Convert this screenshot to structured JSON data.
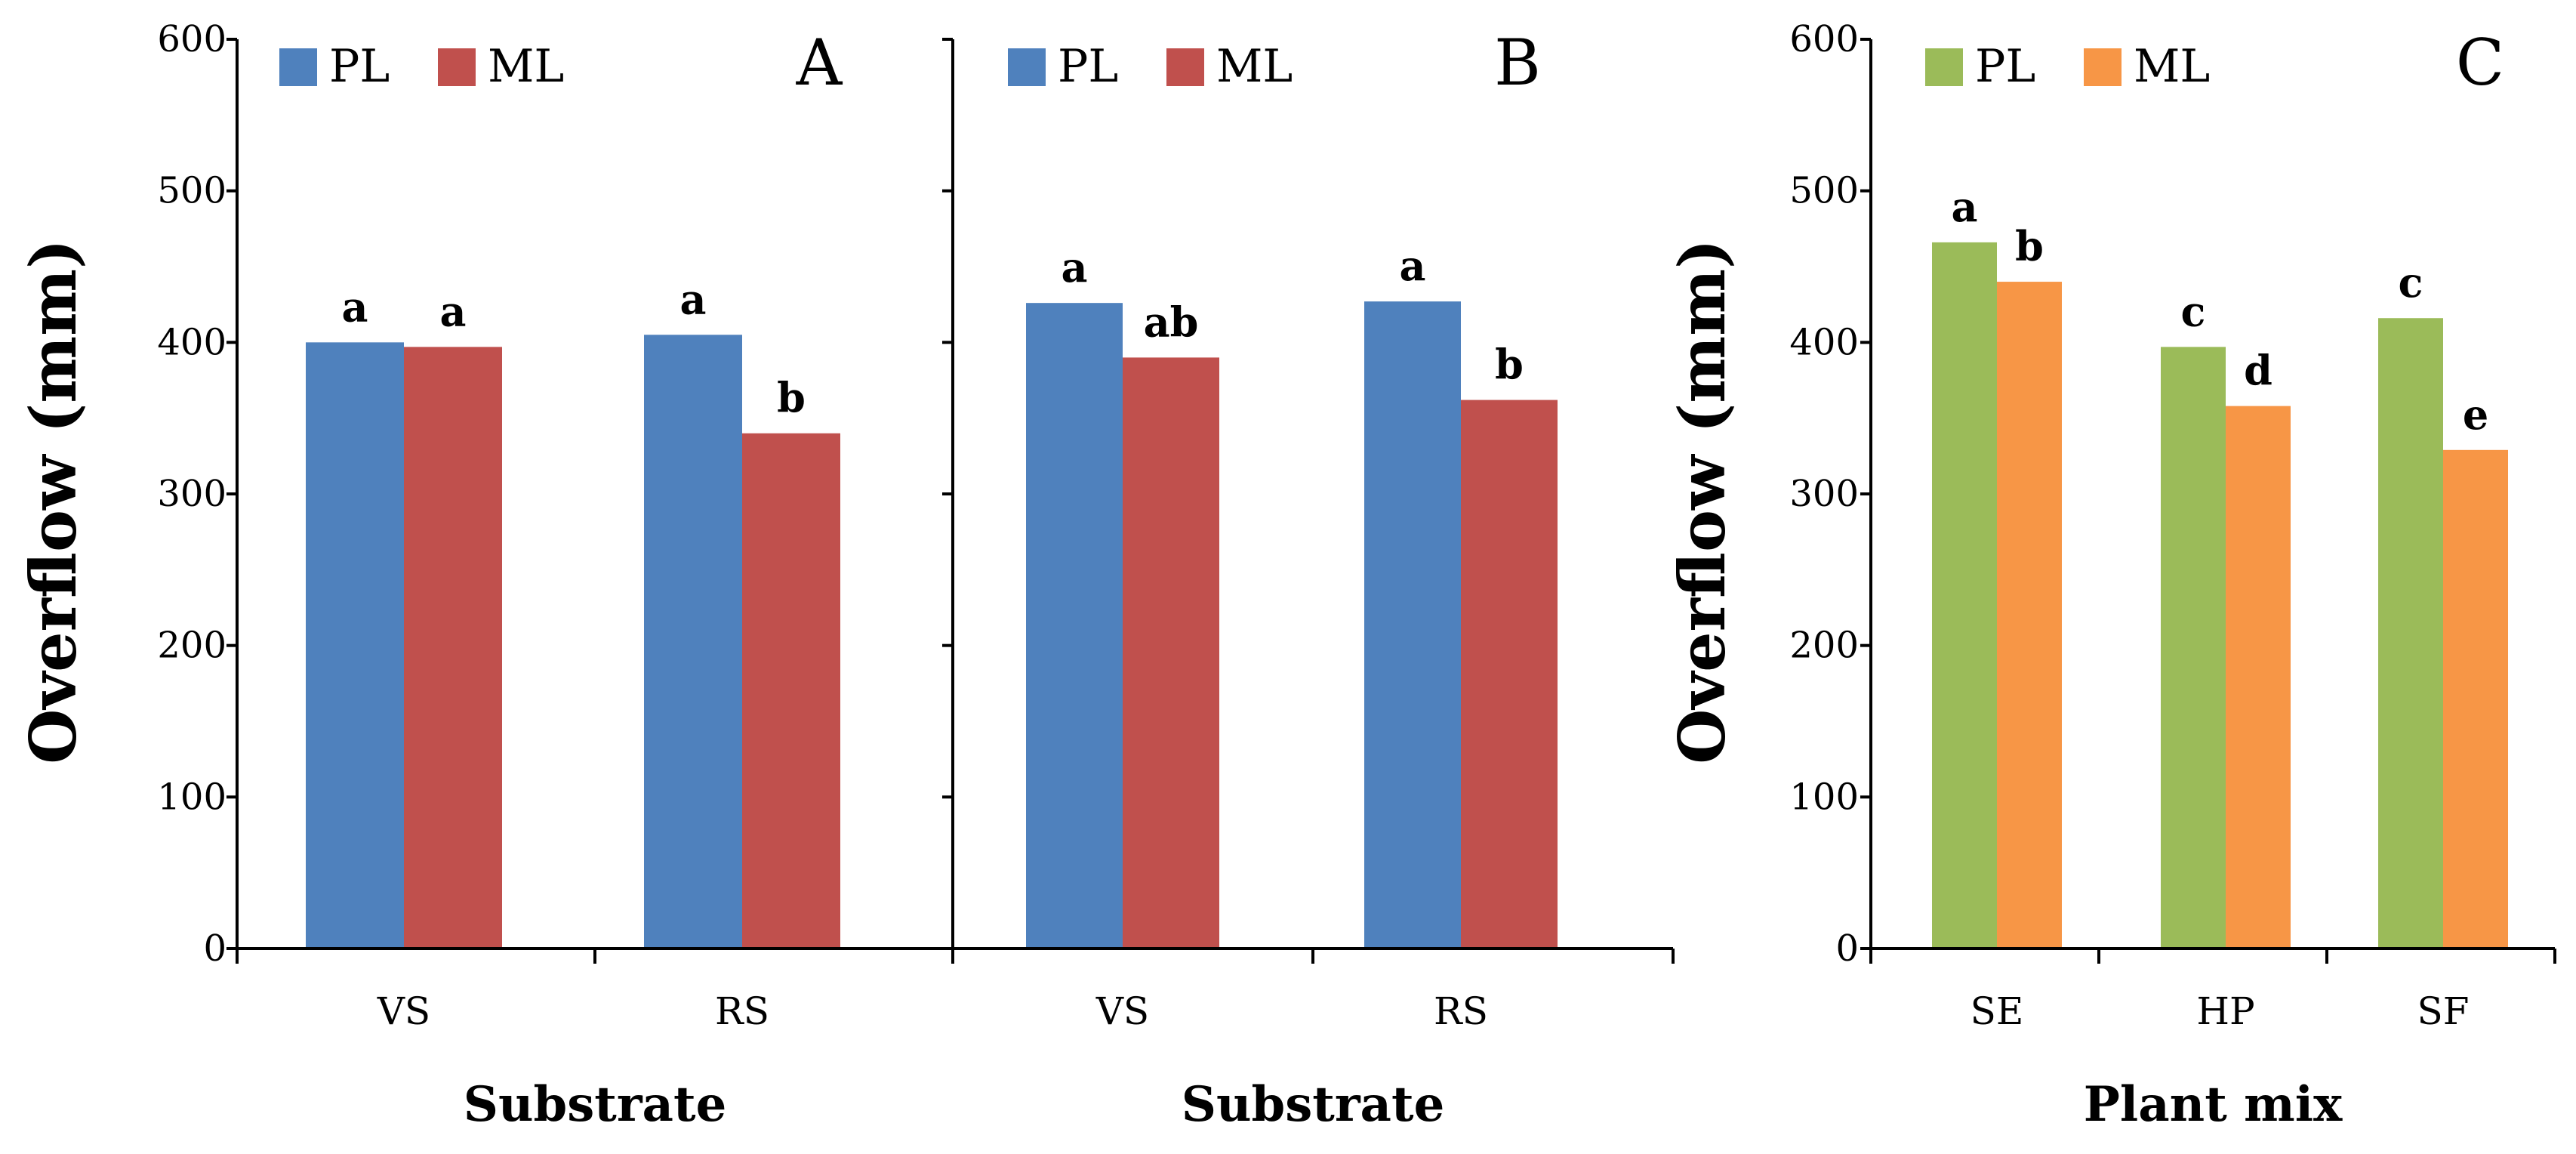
{
  "chart_data": [
    {
      "type": "bar",
      "panel": "A",
      "categories": [
        "VS",
        "RS"
      ],
      "series": [
        {
          "name": "PL",
          "color": "#4F81BD",
          "values": [
            400,
            405
          ],
          "labels": [
            "a",
            "a"
          ]
        },
        {
          "name": "ML",
          "color": "#C0504D",
          "values": [
            397,
            340
          ],
          "labels": [
            "a",
            "b"
          ]
        }
      ],
      "xlabel": "Substrate",
      "ylabel": "Overflow (mm)",
      "ylim": [
        0,
        600
      ],
      "yticks": [
        0,
        100,
        200,
        300,
        400,
        500,
        600
      ],
      "ytick_labels": [
        "0",
        "100",
        "200",
        "300",
        "400",
        "500",
        "600"
      ],
      "legend": "top-left"
    },
    {
      "type": "bar",
      "panel": "B",
      "categories": [
        "VS",
        "RS"
      ],
      "series": [
        {
          "name": "PL",
          "color": "#4F81BD",
          "values": [
            426,
            427
          ],
          "labels": [
            "a",
            "a"
          ]
        },
        {
          "name": "ML",
          "color": "#C0504D",
          "values": [
            390,
            362
          ],
          "labels": [
            "ab",
            "b"
          ]
        }
      ],
      "xlabel": "Substrate",
      "ylabel": "",
      "ylim": [
        0,
        600
      ],
      "yticks": [
        0,
        100,
        200,
        300,
        400,
        500,
        600
      ],
      "ytick_labels": [],
      "legend": "top-left"
    },
    {
      "type": "bar",
      "panel": "C",
      "categories": [
        "SE",
        "HP",
        "SF"
      ],
      "series": [
        {
          "name": "PL",
          "color": "#9BBB59",
          "values": [
            466,
            397,
            416
          ],
          "labels": [
            "a",
            "c",
            "c"
          ]
        },
        {
          "name": "ML",
          "color": "#F79646",
          "values": [
            440,
            358,
            329
          ],
          "labels": [
            "b",
            "d",
            "e"
          ]
        }
      ],
      "xlabel": "Plant mix",
      "ylabel": "Overflow (mm)",
      "ylim": [
        0,
        600
      ],
      "yticks": [
        0,
        100,
        200,
        300,
        400,
        500,
        600
      ],
      "ytick_labels": [
        "0",
        "100",
        "200",
        "300",
        "400",
        "500",
        "600"
      ],
      "legend": "top-left"
    }
  ]
}
